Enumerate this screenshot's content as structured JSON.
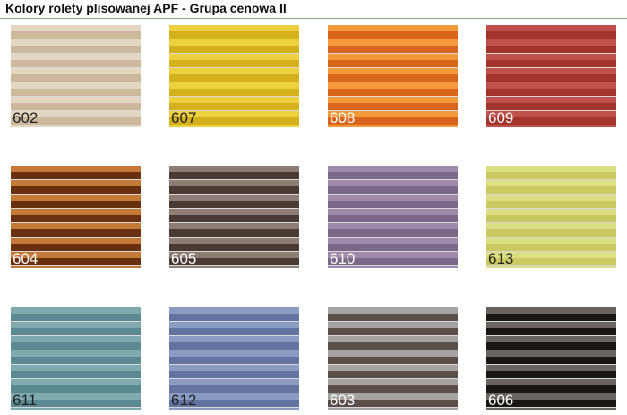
{
  "title": "Kolory rolety plisowanej APF - Grupa cenowa II",
  "swatches": [
    {
      "code": "602",
      "light": "#e3d6c2",
      "dark": "#cbb89d",
      "label_color": "#222222"
    },
    {
      "code": "607",
      "light": "#ecd040",
      "dark": "#d4b01c",
      "label_color": "#222222"
    },
    {
      "code": "608",
      "light": "#f29a3a",
      "dark": "#d9641c",
      "label_color": "#ffffff"
    },
    {
      "code": "609",
      "light": "#c0504a",
      "dark": "#a2342c",
      "label_color": "#ffffff"
    },
    {
      "code": "604",
      "light": "#c47a36",
      "dark": "#6a3012",
      "label_color": "#ffffff"
    },
    {
      "code": "605",
      "light": "#8e7d74",
      "dark": "#4a3a34",
      "label_color": "#ffffff"
    },
    {
      "code": "610",
      "light": "#9e8aaa",
      "dark": "#7a6888",
      "label_color": "#ffffff"
    },
    {
      "code": "613",
      "light": "#dcde84",
      "dark": "#c8ca60",
      "label_color": "#222222"
    },
    {
      "code": "611",
      "light": "#7eaab0",
      "dark": "#5c8a92",
      "label_color": "#222222"
    },
    {
      "code": "612",
      "light": "#8a9cc2",
      "dark": "#6474a0",
      "label_color": "#222222"
    },
    {
      "code": "603",
      "light": "#a6a4a2",
      "dark": "#5a4e48",
      "label_color": "#ffffff"
    },
    {
      "code": "606",
      "light": "#6a6460",
      "dark": "#1a1612",
      "label_color": "#ffffff"
    }
  ]
}
